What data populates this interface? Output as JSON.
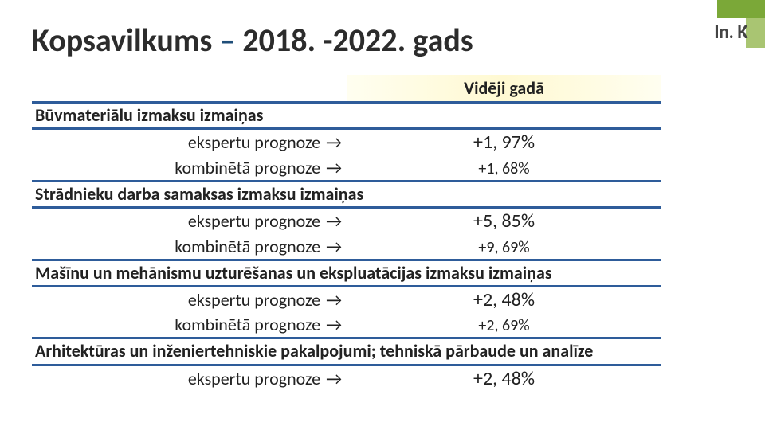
{
  "logo": {
    "text": "In. K"
  },
  "title_pre": "Kopsavilkums ",
  "title_dash": "–",
  "title_post": " 2018. -2022. gads",
  "column_header": "Vidēji gadā",
  "arrow": "→",
  "sections": [
    {
      "header": "Būvmateriālu izmaksu izmaiņas",
      "rows": [
        {
          "label": "ekspertu prognoze",
          "value": "+1, 97%",
          "size": "big"
        },
        {
          "label": "kombinētā prognoze",
          "value": "+1, 68%",
          "size": "small"
        }
      ]
    },
    {
      "header": "Strādnieku darba samaksas izmaksu izmaiņas",
      "rows": [
        {
          "label": "ekspertu prognoze",
          "value": "+5, 85%",
          "size": "big"
        },
        {
          "label": "kombinētā prognoze",
          "value": "+9, 69%",
          "size": "small"
        }
      ]
    },
    {
      "header": "Mašīnu un mehānismu uzturēšanas un ekspluatācijas izmaksu izmaiņas",
      "rows": [
        {
          "label": "ekspertu prognoze",
          "value": "+2, 48%",
          "size": "big"
        },
        {
          "label": "kombinētā prognoze",
          "value": "+2, 69%",
          "size": "small"
        }
      ]
    },
    {
      "header": "Arhitektūras un inženiertehniskie pakalpojumi; tehniskā pārbaude un analīze",
      "rows": [
        {
          "label": "ekspertu prognoze",
          "value": "+2, 48%",
          "size": "big"
        }
      ]
    }
  ],
  "styling": {
    "title_fontsize": 40,
    "header_fontsize": 22,
    "row_fontsize": 22,
    "big_value_fontsize": 24,
    "small_value_fontsize": 20,
    "border_color": "#2e5c9a",
    "title_dash_color": "#1f4e79",
    "text_color": "#222222",
    "column_header_bg_gradient": [
      "#fffef0",
      "#fff9d2",
      "#fffef0"
    ],
    "logo_green_dark": "#7ba838",
    "logo_green_light": "#a9c572",
    "background": "#ffffff"
  }
}
